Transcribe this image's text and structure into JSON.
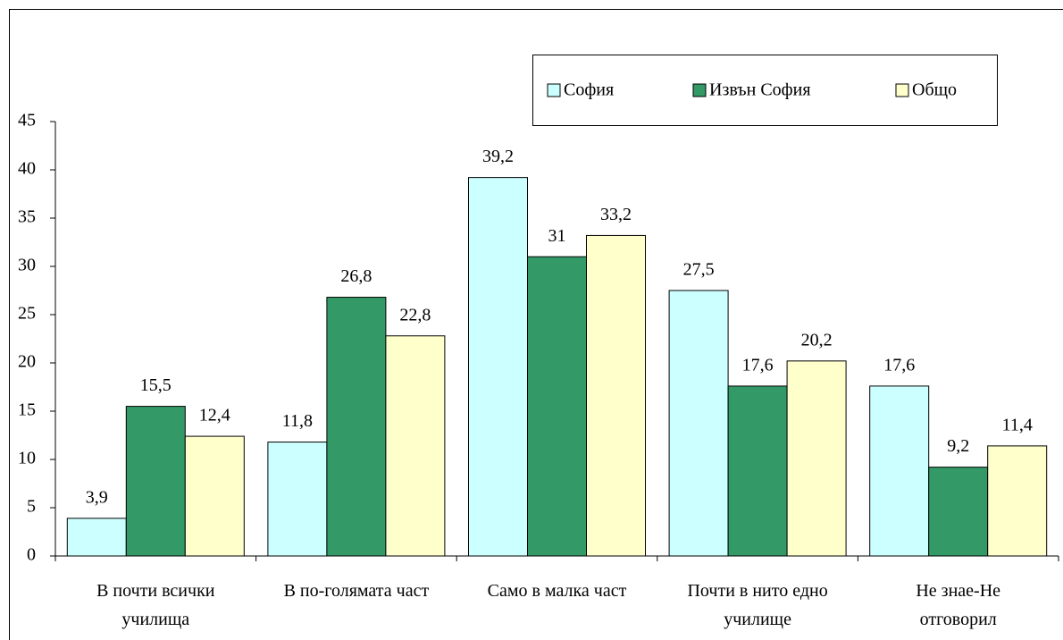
{
  "chart_data": {
    "type": "bar",
    "categories": [
      [
        "В почти всички",
        "училища"
      ],
      [
        "В по-голямата част"
      ],
      [
        "Само в малка част"
      ],
      [
        "Почти в нито едно",
        "училище"
      ],
      [
        "Не знае-Не",
        "отговорил"
      ]
    ],
    "series": [
      {
        "name": "София",
        "color": "#ccffff",
        "values": [
          3.9,
          11.8,
          39.2,
          27.5,
          17.6
        ],
        "value_labels": [
          "3,9",
          "11,8",
          "39,2",
          "27,5",
          "17,6"
        ]
      },
      {
        "name": "Извън София",
        "color": "#339966",
        "values": [
          15.5,
          26.8,
          31,
          17.6,
          9.2
        ],
        "value_labels": [
          "15,5",
          "26,8",
          "31",
          "17,6",
          "9,2"
        ]
      },
      {
        "name": "Общо",
        "color": "#ffffcc",
        "values": [
          12.4,
          22.8,
          33.2,
          20.2,
          11.4
        ],
        "value_labels": [
          "12,4",
          "22,8",
          "33,2",
          "20,2",
          "11,4"
        ]
      }
    ],
    "ylim": [
      0,
      45
    ],
    "yticks": [
      0,
      5,
      10,
      15,
      20,
      25,
      30,
      35,
      40,
      45
    ],
    "grid": false,
    "legend": "top-right"
  }
}
